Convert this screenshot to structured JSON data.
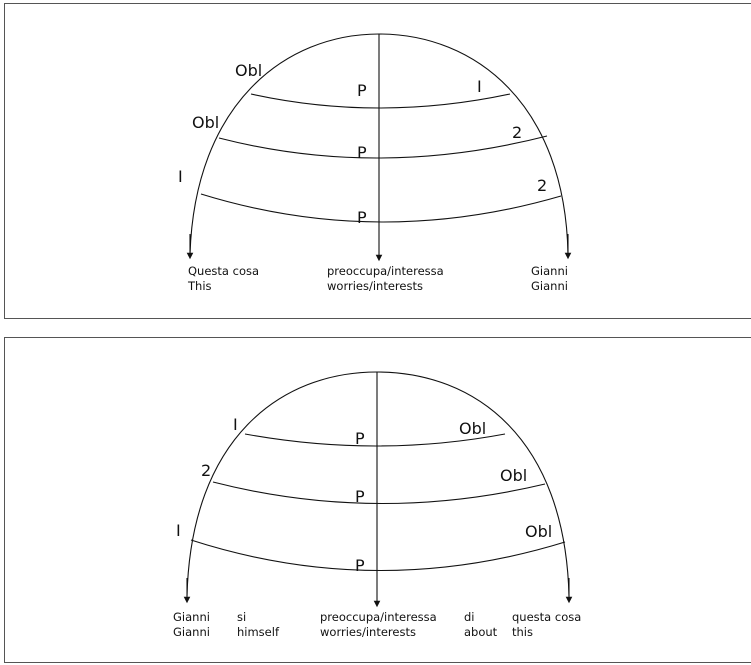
{
  "diagram1": {
    "arc_labels": [
      "Obl",
      "Obl",
      "I"
    ],
    "p_labels": [
      "P",
      "P",
      "P"
    ],
    "right_labels": [
      "I",
      "2",
      "2"
    ],
    "captions": [
      {
        "l1": "Questa cosa",
        "l2": "This"
      },
      {
        "l1": "preoccupa/interessa",
        "l2": "worries/interests"
      },
      {
        "l1": "Gianni",
        "l2": "Gianni"
      }
    ]
  },
  "diagram2": {
    "arc_labels": [
      "I",
      "2",
      "I"
    ],
    "p_labels": [
      "P",
      "P",
      "P"
    ],
    "right_labels": [
      "Obl",
      "Obl",
      "Obl"
    ],
    "captions": [
      {
        "l1": "Gianni",
        "l2": "Gianni"
      },
      {
        "l1": "si",
        "l2": "himself"
      },
      {
        "l1": "preoccupa/interessa",
        "l2": "worries/interests"
      },
      {
        "l1": "di",
        "l2": "about"
      },
      {
        "l1": "questa cosa",
        "l2": "this"
      }
    ]
  }
}
